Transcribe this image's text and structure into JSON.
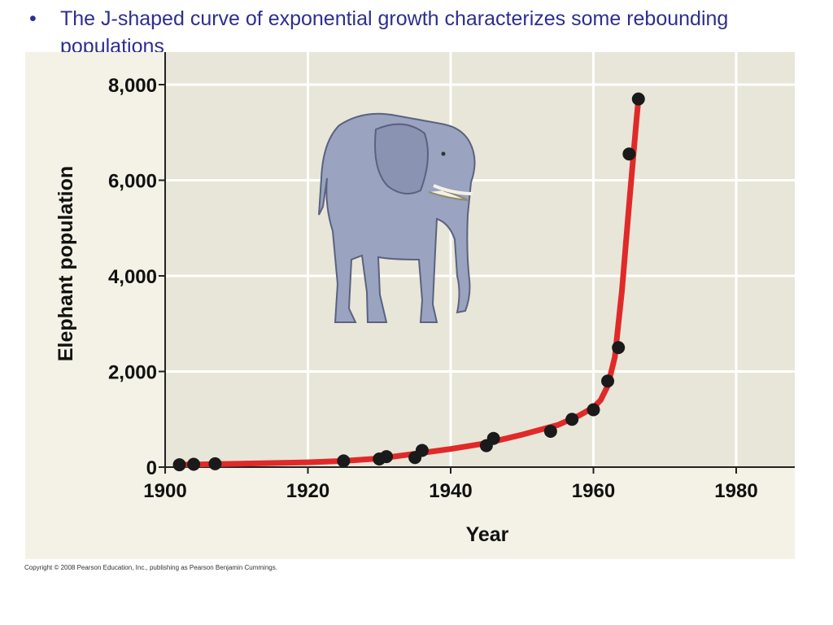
{
  "slide": {
    "bullet_symbol": "•",
    "bullet_text": "The J-shaped curve of exponential growth characterizes some rebounding populations",
    "copyright": "Copyright © 2008 Pearson Education, Inc., publishing as Pearson Benjamin Cummings."
  },
  "chart_data": {
    "type": "scatter",
    "title": "",
    "xlabel": "Year",
    "ylabel": "Elephant population",
    "xlim": [
      1900,
      1980
    ],
    "ylim": [
      0,
      8000
    ],
    "x_ticks": [
      "1900",
      "1920",
      "1940",
      "1960",
      "1980"
    ],
    "y_ticks": [
      "0",
      "2,000",
      "4,000",
      "6,000",
      "8,000"
    ],
    "grid": true,
    "legend": "none",
    "colors": {
      "plot_background": "#e8e6d8",
      "panel_background": "#f4f2e6",
      "curve": "#e02a2a",
      "points": "#1a1a1a",
      "grid": "#ffffff"
    },
    "series": [
      {
        "kind": "points",
        "x": [
          1902,
          1904,
          1907,
          1925,
          1930,
          1931,
          1935,
          1936,
          1945,
          1946,
          1954,
          1957,
          1960,
          1962,
          1963.5,
          1965,
          1966.3
        ],
        "y": [
          50,
          60,
          70,
          130,
          170,
          220,
          200,
          350,
          450,
          600,
          750,
          1000,
          1200,
          1800,
          2500,
          6550,
          7700
        ]
      },
      {
        "kind": "curve",
        "x": [
          1902,
          1910,
          1920,
          1925,
          1930,
          1935,
          1940,
          1945,
          1950,
          1955,
          1958,
          1960,
          1961,
          1962,
          1963,
          1964,
          1965,
          1966,
          1966.3
        ],
        "y": [
          50,
          70,
          100,
          130,
          180,
          280,
          380,
          500,
          680,
          880,
          1080,
          1250,
          1400,
          1700,
          2300,
          3700,
          5500,
          7200,
          7700
        ]
      }
    ]
  }
}
